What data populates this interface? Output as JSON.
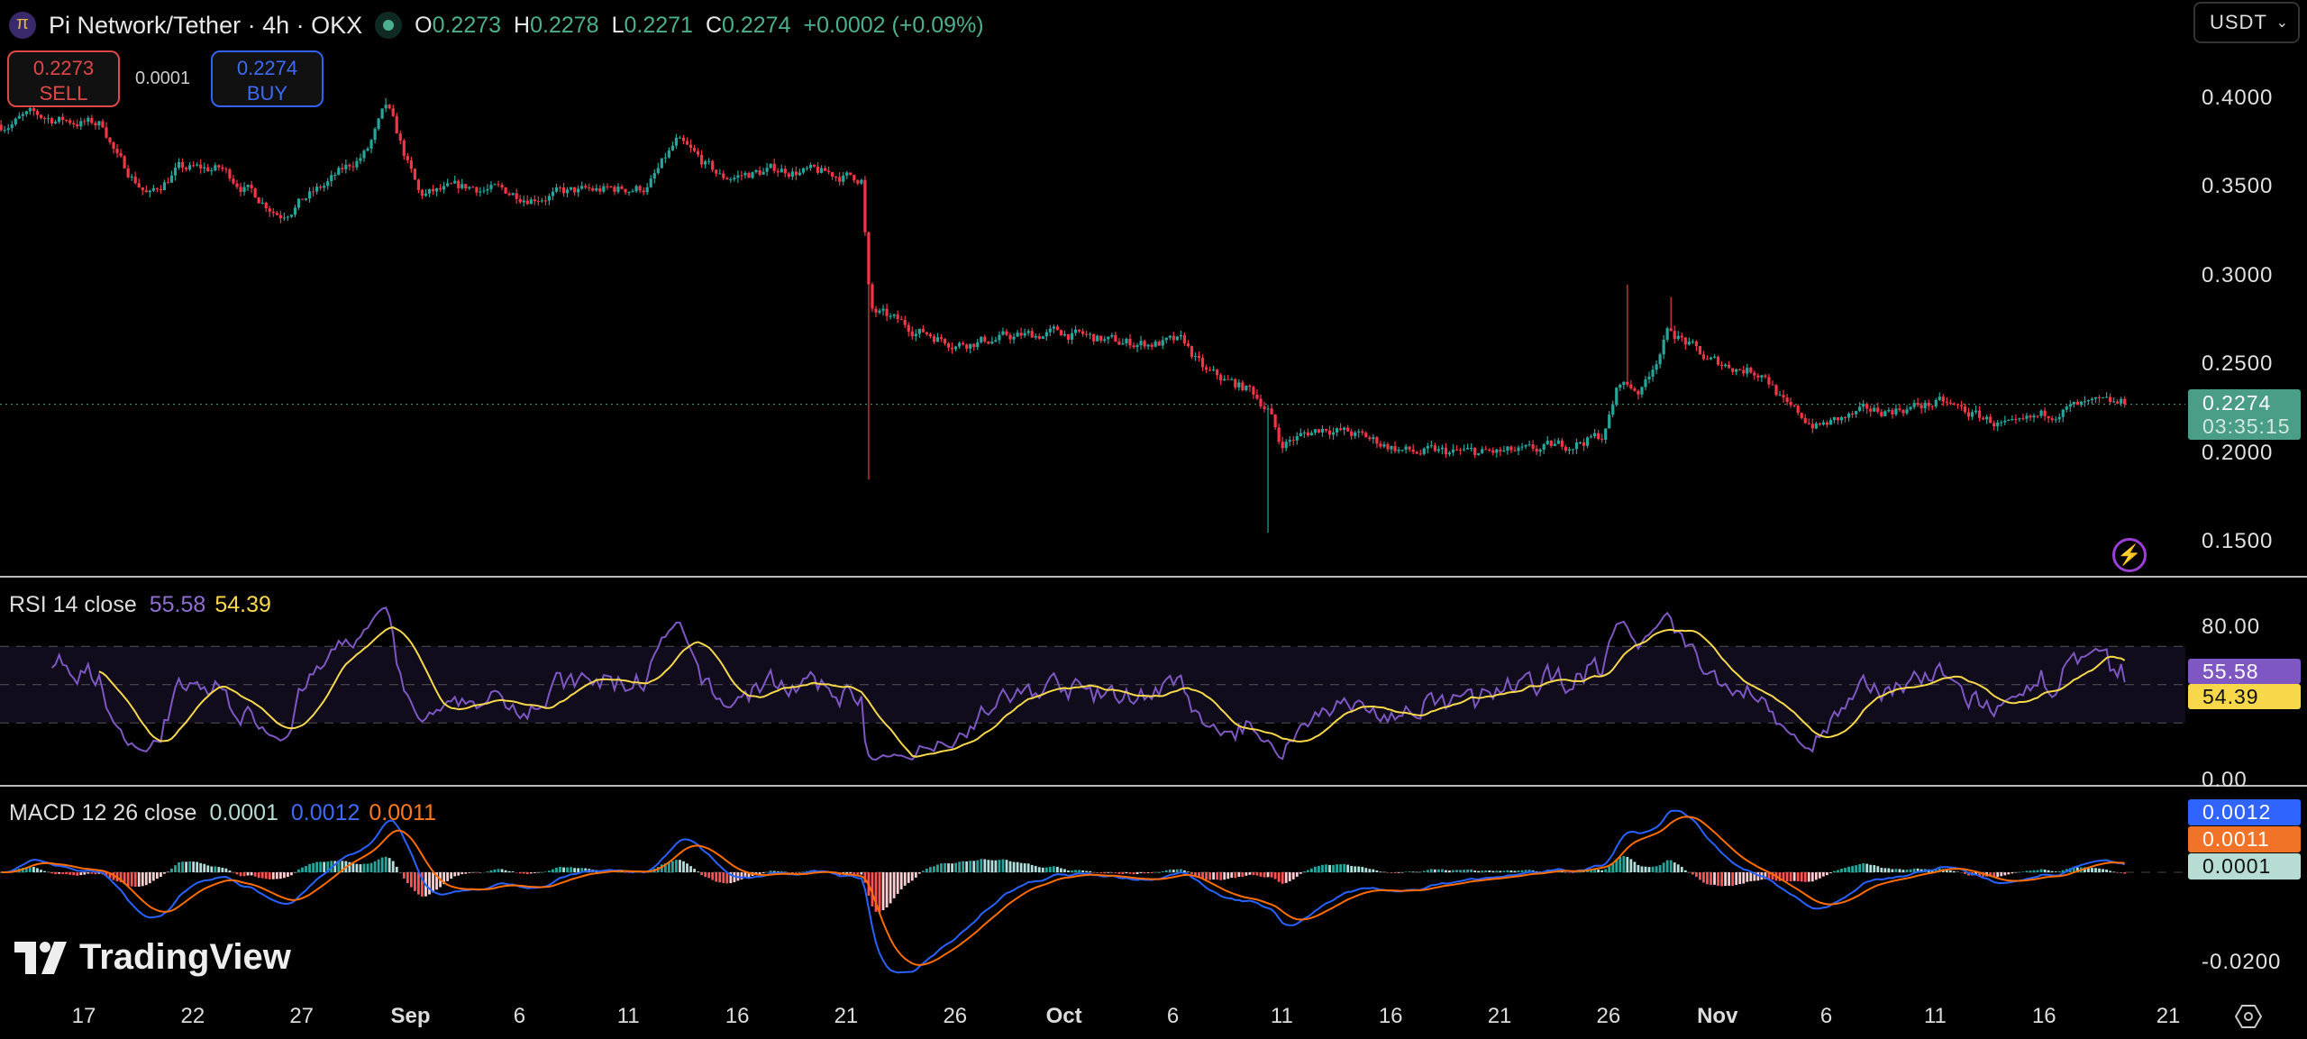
{
  "header": {
    "symbol": "Pi Network/Tether · 4h · OKX",
    "o_label": "O",
    "o": "0.2273",
    "h_label": "H",
    "h": "0.2278",
    "l_label": "L",
    "l": "0.2271",
    "c_label": "C",
    "c": "0.2274",
    "change": "+0.0002 (+0.09%)"
  },
  "trade": {
    "sell_price": "0.2273",
    "sell_label": "SELL",
    "spread": "0.0001",
    "buy_price": "0.2274",
    "buy_label": "BUY"
  },
  "currency": "USDT",
  "price_axis": [
    "0.4000",
    "0.3500",
    "0.3000",
    "0.2500",
    "0.2000",
    "0.1500"
  ],
  "last_price": {
    "value": "0.2274",
    "countdown": "03:35:15"
  },
  "rsi": {
    "label": "RSI 14 close",
    "rsi": "55.58",
    "ma": "54.39",
    "axis": [
      "80.00",
      "0.00"
    ]
  },
  "macd": {
    "label": "MACD 12 26 close",
    "hist": "0.0001",
    "macd": "0.0012",
    "signal": "0.0011",
    "axis": [
      "-0.0200"
    ]
  },
  "time_axis": [
    {
      "t": "17",
      "d": 0
    },
    {
      "t": "22",
      "d": 5
    },
    {
      "t": "27",
      "d": 10
    },
    {
      "t": "Sep",
      "d": 15
    },
    {
      "t": "6",
      "d": 20
    },
    {
      "t": "11",
      "d": 25
    },
    {
      "t": "16",
      "d": 30
    },
    {
      "t": "21",
      "d": 35
    },
    {
      "t": "26",
      "d": 40
    },
    {
      "t": "Oct",
      "d": 45
    },
    {
      "t": "6",
      "d": 50
    },
    {
      "t": "11",
      "d": 55
    },
    {
      "t": "16",
      "d": 60
    },
    {
      "t": "21",
      "d": 65
    },
    {
      "t": "26",
      "d": 70
    },
    {
      "t": "Nov",
      "d": 75
    },
    {
      "t": "6",
      "d": 80
    },
    {
      "t": "11",
      "d": 85
    },
    {
      "t": "16",
      "d": 90
    },
    {
      "t": "21",
      "d": 95.7
    }
  ],
  "brand": "TradingView",
  "colors": {
    "up": "#26a69a",
    "down": "#f23645",
    "rsi": "#7e57c2",
    "rsi_ma": "#f7d84b",
    "macd": "#2962ff",
    "signal": "#ff6d00",
    "tag": "#4a9d86"
  },
  "chart_data": {
    "type": "candlestick",
    "interval": "4h",
    "x_unit": "days since Aug 17",
    "price_path": [
      [
        -3.8,
        0.385
      ],
      [
        -2.5,
        0.39
      ],
      [
        0.9,
        0.385
      ],
      [
        1.6,
        0.365
      ],
      [
        3,
        0.345
      ],
      [
        4.3,
        0.36
      ],
      [
        6.3,
        0.36
      ],
      [
        9,
        0.335
      ],
      [
        11,
        0.35
      ],
      [
        13,
        0.37
      ],
      [
        13.9,
        0.395
      ],
      [
        15.4,
        0.345
      ],
      [
        17.8,
        0.35
      ],
      [
        20.5,
        0.345
      ],
      [
        25.9,
        0.35
      ],
      [
        27.2,
        0.375
      ],
      [
        29.3,
        0.355
      ],
      [
        32,
        0.36
      ],
      [
        35.7,
        0.355
      ],
      [
        36.1,
        0.28
      ],
      [
        38.1,
        0.27
      ],
      [
        40.1,
        0.262
      ],
      [
        44.8,
        0.268
      ],
      [
        47.5,
        0.262
      ],
      [
        50.5,
        0.262
      ],
      [
        51.5,
        0.245
      ],
      [
        53.6,
        0.235
      ],
      [
        54.4,
        0.225
      ],
      [
        54.9,
        0.205
      ],
      [
        57,
        0.215
      ],
      [
        59.7,
        0.205
      ],
      [
        61,
        0.2
      ],
      [
        66.4,
        0.2
      ],
      [
        69.8,
        0.21
      ],
      [
        70.5,
        0.24
      ],
      [
        71.5,
        0.235
      ],
      [
        72.8,
        0.27
      ],
      [
        74.5,
        0.252
      ],
      [
        77.2,
        0.245
      ],
      [
        78.2,
        0.225
      ],
      [
        79.6,
        0.215
      ],
      [
        81.9,
        0.223
      ],
      [
        85.3,
        0.228
      ],
      [
        88.7,
        0.213
      ],
      [
        90.7,
        0.225
      ],
      [
        93.8,
        0.2274
      ]
    ],
    "wicks": [
      [
        36.1,
        0.185
      ],
      [
        54.4,
        0.155
      ],
      [
        70.8,
        0.295
      ],
      [
        72.8,
        0.288
      ],
      [
        13.9,
        0.4
      ]
    ],
    "price_range": [
      0.13,
      0.43
    ],
    "indicators": [
      "RSI 14",
      "RSI MA 14",
      "MACD 12 26 9"
    ]
  }
}
